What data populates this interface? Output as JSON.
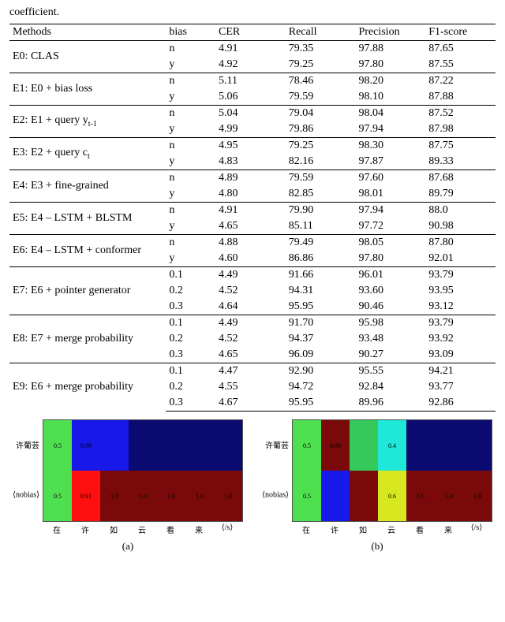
{
  "caption_fragment": "coefficient.",
  "headers": [
    "Methods",
    "bias",
    "CER",
    "Recall",
    "Precision",
    "F1-score"
  ],
  "groups": [
    {
      "method": "E0: CLAS",
      "rows": [
        {
          "bias": "n",
          "cer": "4.91",
          "recall": "79.35",
          "prec": "97.88",
          "f1": "87.65"
        },
        {
          "bias": "y",
          "cer": "4.92",
          "recall": "79.25",
          "prec": "97.80",
          "f1": "87.55"
        }
      ]
    },
    {
      "method": "E1: E0 + bias loss",
      "rows": [
        {
          "bias": "n",
          "cer": "5.11",
          "recall": "78.46",
          "prec": "98.20",
          "f1": "87.22"
        },
        {
          "bias": "y",
          "cer": "5.06",
          "recall": "79.59",
          "prec": "98.10",
          "f1": "87.88"
        }
      ]
    },
    {
      "method_html": "E2: E1 + query y<sub>t-1</sub>",
      "rows": [
        {
          "bias": "n",
          "cer": "5.04",
          "recall": "79.04",
          "prec": "98.04",
          "f1": "87.52"
        },
        {
          "bias": "y",
          "cer": "4.99",
          "recall": "79.86",
          "prec": "97.94",
          "f1": "87.98"
        }
      ]
    },
    {
      "method_html": "E3: E2 + query c<sub>t</sub>",
      "rows": [
        {
          "bias": "n",
          "cer": "4.95",
          "recall": "79.25",
          "prec": "98.30",
          "f1": "87.75"
        },
        {
          "bias": "y",
          "cer": "4.83",
          "recall": "82.16",
          "prec": "97.87",
          "f1": "89.33"
        }
      ]
    },
    {
      "method": "E4: E3 + fine-grained",
      "rows": [
        {
          "bias": "n",
          "cer": "4.89",
          "recall": "79.59",
          "prec": "97.60",
          "f1": "87.68"
        },
        {
          "bias": "y",
          "cer": "4.80",
          "recall": "82.85",
          "prec": "98.01",
          "f1": "89.79"
        }
      ]
    },
    {
      "method": "E5: E4 – LSTM + BLSTM",
      "rows": [
        {
          "bias": "n",
          "cer": "4.91",
          "recall": "79.90",
          "prec": "97.94",
          "f1": "88.0"
        },
        {
          "bias": "y",
          "cer": "4.65",
          "recall": "85.11",
          "prec": "97.72",
          "f1": "90.98"
        }
      ]
    },
    {
      "method": "E6: E4 – LSTM + conformer",
      "rows": [
        {
          "bias": "n",
          "cer": "4.88",
          "recall": "79.49",
          "prec": "98.05",
          "f1": "87.80"
        },
        {
          "bias": "y",
          "cer": "4.60",
          "recall": "86.86",
          "prec": "97.80",
          "f1": "92.01"
        }
      ]
    },
    {
      "method": "E7: E6 + pointer generator",
      "rows": [
        {
          "bias": "0.1",
          "cer": "4.49",
          "recall": "91.66",
          "prec": "96.01",
          "f1": "93.79"
        },
        {
          "bias": "0.2",
          "cer": "4.52",
          "recall": "94.31",
          "prec": "93.60",
          "f1": "93.95"
        },
        {
          "bias": "0.3",
          "cer": "4.64",
          "recall": "95.95",
          "prec": "90.46",
          "f1": "93.12"
        }
      ]
    },
    {
      "method": "E8: E7 + merge probability",
      "rows": [
        {
          "bias": "0.1",
          "cer": "4.49",
          "recall": "91.70",
          "prec": "95.98",
          "f1": "93.79"
        },
        {
          "bias": "0.2",
          "cer": "4.52",
          "recall": "94.37",
          "prec": "93.48",
          "f1": "93.92"
        },
        {
          "bias": "0.3",
          "cer": "4.65",
          "recall": "96.09",
          "prec": "90.27",
          "f1": "93.09"
        }
      ]
    },
    {
      "method": "E9: E6 + merge probability",
      "rows": [
        {
          "bias": "0.1",
          "cer": "4.47",
          "recall": "92.90",
          "prec": "95.55",
          "f1": "94.21"
        },
        {
          "bias": "0.2",
          "cer": "4.55",
          "recall": "94.72",
          "prec": "92.84",
          "f1": "93.77"
        },
        {
          "bias": "0.3",
          "cer": "4.67",
          "recall": "95.95",
          "prec": "89.96",
          "f1": "92.86"
        }
      ]
    }
  ],
  "heatmap": {
    "y_labels": [
      "许葡芸",
      "⟨nobias⟩"
    ],
    "x_labels": [
      "在",
      "许",
      "如",
      "云",
      "看",
      "来",
      "⟨/s⟩"
    ],
    "colors": {
      "hi_green": "#4fe04f",
      "green2": "#34c95a",
      "blue": "#1818e8",
      "darkblue": "#0a0a70",
      "red": "#ff1010",
      "darkred": "#7a0a0a",
      "cyan": "#20e8d8",
      "yellow": "#d8e820"
    },
    "a": {
      "label": "(a)",
      "cells": [
        [
          {
            "v": "0.5",
            "c": "hi_green"
          },
          {
            "v": "0.99",
            "c": "blue"
          },
          {
            "v": "",
            "c": "blue"
          },
          {
            "v": "",
            "c": "darkblue"
          },
          {
            "v": "",
            "c": "darkblue"
          },
          {
            "v": "",
            "c": "darkblue"
          },
          {
            "v": "",
            "c": "darkblue"
          }
        ],
        [
          {
            "v": "0.5",
            "c": "hi_green"
          },
          {
            "v": "0.91",
            "c": "red"
          },
          {
            "v": "1.0",
            "c": "darkred"
          },
          {
            "v": "1.0",
            "c": "darkred"
          },
          {
            "v": "1.0",
            "c": "darkred"
          },
          {
            "v": "1.0",
            "c": "darkred"
          },
          {
            "v": "1.0",
            "c": "darkred"
          }
        ]
      ]
    },
    "b": {
      "label": "(b)",
      "cells": [
        [
          {
            "v": "0.5",
            "c": "hi_green"
          },
          {
            "v": "0.99",
            "c": "darkred"
          },
          {
            "v": "",
            "c": "green2"
          },
          {
            "v": "0.4",
            "c": "cyan"
          },
          {
            "v": "",
            "c": "darkblue"
          },
          {
            "v": "",
            "c": "darkblue"
          },
          {
            "v": "",
            "c": "darkblue"
          }
        ],
        [
          {
            "v": "0.5",
            "c": "hi_green"
          },
          {
            "v": "",
            "c": "blue"
          },
          {
            "v": "",
            "c": "darkred"
          },
          {
            "v": "0.6",
            "c": "yellow"
          },
          {
            "v": "1.0",
            "c": "darkred"
          },
          {
            "v": "1.0",
            "c": "darkred"
          },
          {
            "v": "1.0",
            "c": "darkred"
          }
        ]
      ]
    }
  }
}
